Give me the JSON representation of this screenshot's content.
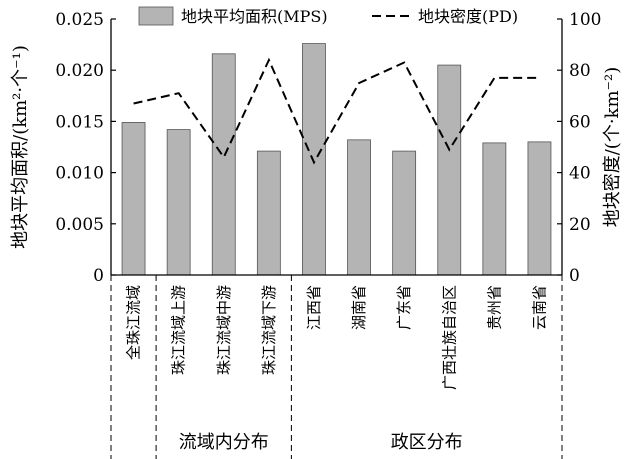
{
  "chart_data": {
    "type": "bar",
    "categories": [
      "全珠江流域",
      "珠江流域上游",
      "珠江流域中游",
      "珠江流域下游",
      "江西省",
      "湖南省",
      "广东省",
      "广西壮族自治区",
      "贵州省",
      "云南省"
    ],
    "series": [
      {
        "name": "地块平均面积(MPS)",
        "type": "bar",
        "axis": "left",
        "color": "#b4b4b4",
        "values": [
          0.0149,
          0.0142,
          0.0216,
          0.0121,
          0.0226,
          0.0132,
          0.0121,
          0.0205,
          0.0129,
          0.013
        ]
      },
      {
        "name": "地块密度(PD)",
        "type": "line",
        "axis": "right",
        "style": "dashed",
        "color": "#000000",
        "values": [
          67,
          71,
          46,
          84,
          44,
          75,
          83,
          49,
          77,
          77
        ]
      }
    ],
    "ylabel": "地块平均面积/(km²·个⁻¹)",
    "y2label": "地块密度/(个·km⁻²)",
    "ylim": [
      0,
      0.025
    ],
    "y2lim": [
      0,
      100
    ],
    "yticks": [
      "0",
      "0.005",
      "0.010",
      "0.015",
      "0.020",
      "0.025"
    ],
    "y2ticks": [
      "0",
      "20",
      "40",
      "60",
      "80",
      "100"
    ],
    "groups": [
      {
        "label": "流域内分布",
        "from": 1,
        "to": 3
      },
      {
        "label": "政区分布",
        "from": 4,
        "to": 9
      }
    ],
    "legend_position": "top",
    "grid": false
  }
}
